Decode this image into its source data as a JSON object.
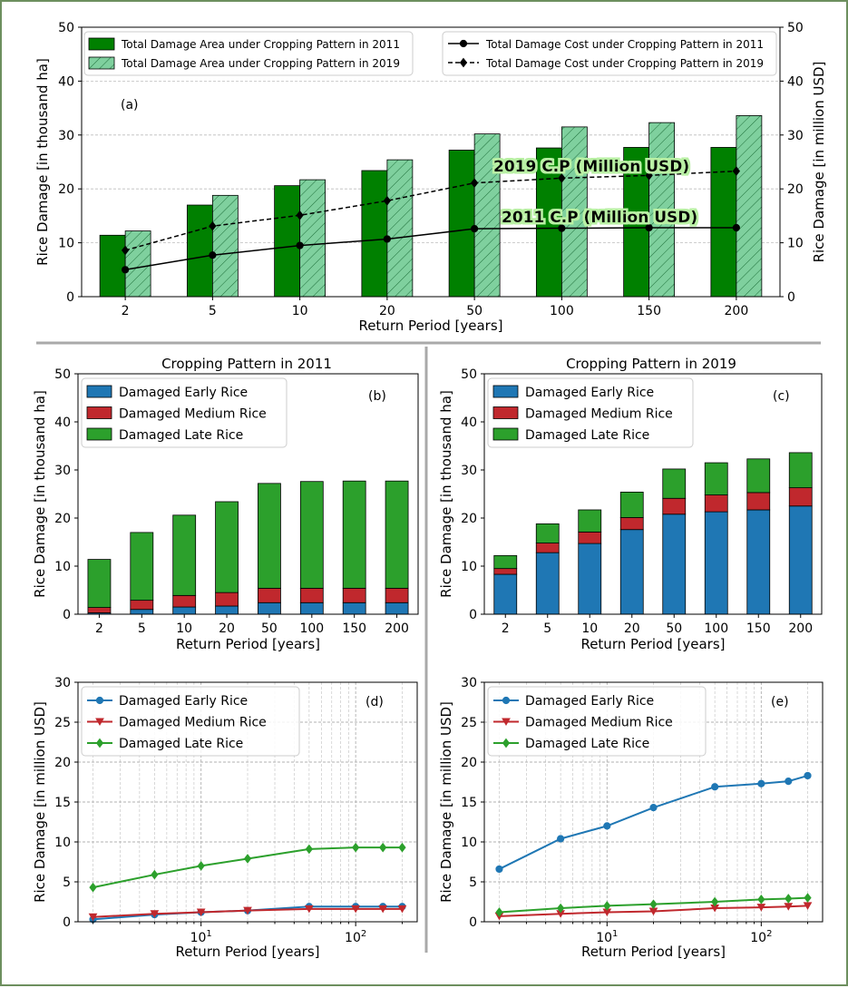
{
  "chart_data": [
    {
      "panel": "(a)",
      "type": "bar+line",
      "x_tick_labels": [
        "2",
        "5",
        "10",
        "20",
        "50",
        "100",
        "150",
        "200"
      ],
      "xlabel": "Return Period [years]",
      "ylabel_left": "Rice Damage [in thousand ha]",
      "ylabel_right": "Rice Damage [in million USD]",
      "ylim_left": [
        0,
        50
      ],
      "ylim_right": [
        0,
        50
      ],
      "y_ticks": [
        0,
        10,
        20,
        30,
        40,
        50
      ],
      "grid": "horizontal dashed",
      "legend_position": "top",
      "annotations": [
        "2019 C.P (Million USD)",
        "2011 C.P (Million USD)"
      ],
      "bar_series": [
        {
          "name": "Total Damage Area under Cropping Pattern in 2011",
          "color": "#008000",
          "hatch": false,
          "values": [
            11.4,
            17.0,
            20.6,
            23.4,
            27.2,
            27.6,
            27.7,
            27.7
          ]
        },
        {
          "name": "Total Damage Area under Cropping Pattern in 2019",
          "color": "#7fd09e",
          "hatch": true,
          "values": [
            12.2,
            18.8,
            21.7,
            25.4,
            30.2,
            31.5,
            32.3,
            33.6
          ]
        }
      ],
      "line_series": [
        {
          "name": "Total Damage Cost under Cropping Pattern in 2011",
          "style": "solid",
          "marker": "circle",
          "values": [
            5.0,
            7.7,
            9.5,
            10.7,
            12.6,
            12.7,
            12.8,
            12.8
          ]
        },
        {
          "name": "Total Damage Cost under Cropping Pattern in 2019",
          "style": "dashed",
          "marker": "diamond",
          "values": [
            8.6,
            13.1,
            15.1,
            17.8,
            21.1,
            22.0,
            22.5,
            23.3
          ]
        }
      ]
    },
    {
      "panel": "(b)",
      "type": "stacked-bar",
      "title": "Cropping Pattern in 2011",
      "categories": [
        "2",
        "5",
        "10",
        "20",
        "50",
        "100",
        "150",
        "200"
      ],
      "xlabel": "Return Period [years]",
      "ylabel": "Rice Damage [in thousand ha]",
      "ylim": [
        0,
        50
      ],
      "y_ticks": [
        0,
        10,
        20,
        30,
        40,
        50
      ],
      "legend_position": "top-left",
      "series": [
        {
          "name": "Damaged Early Rice",
          "color": "#1f77b4",
          "values": [
            0.3,
            1.0,
            1.5,
            1.7,
            2.4,
            2.4,
            2.4,
            2.4
          ]
        },
        {
          "name": "Damaged Medium Rice",
          "color": "#c0282d",
          "values": [
            1.1,
            1.9,
            2.4,
            2.8,
            3.0,
            3.0,
            3.0,
            3.0
          ]
        },
        {
          "name": "Damaged Late Rice",
          "color": "#2ca02c",
          "values": [
            10.0,
            14.1,
            16.7,
            18.9,
            21.8,
            22.2,
            22.3,
            22.3
          ]
        }
      ]
    },
    {
      "panel": "(c)",
      "type": "stacked-bar",
      "title": "Cropping Pattern in 2019",
      "categories": [
        "2",
        "5",
        "10",
        "20",
        "50",
        "100",
        "150",
        "200"
      ],
      "xlabel": "Return Period [years]",
      "ylabel": "Rice Damage [in thousand ha]",
      "ylim": [
        0,
        50
      ],
      "y_ticks": [
        0,
        10,
        20,
        30,
        40,
        50
      ],
      "legend_position": "top-left",
      "series": [
        {
          "name": "Damaged Early Rice",
          "color": "#1f77b4",
          "values": [
            8.3,
            12.8,
            14.7,
            17.6,
            20.8,
            21.3,
            21.7,
            22.5
          ]
        },
        {
          "name": "Damaged Medium Rice",
          "color": "#c0282d",
          "values": [
            1.2,
            2.0,
            2.4,
            2.5,
            3.3,
            3.5,
            3.6,
            3.8
          ]
        },
        {
          "name": "Damaged Late Rice",
          "color": "#2ca02c",
          "values": [
            2.7,
            4.0,
            4.6,
            5.3,
            6.1,
            6.7,
            7.0,
            7.3
          ]
        }
      ]
    },
    {
      "panel": "(d)",
      "type": "line",
      "xscale": "log",
      "x": [
        2,
        5,
        10,
        20,
        50,
        100,
        150,
        200
      ],
      "xlim": [
        1.6,
        250
      ],
      "x_tick_labels": [
        "10^1",
        "10^2"
      ],
      "xlabel": "Return Period [years]",
      "ylabel": "Rice Damage [in million USD]",
      "ylim": [
        0,
        30
      ],
      "y_ticks": [
        0,
        5,
        10,
        15,
        20,
        25,
        30
      ],
      "grid": "dashed both",
      "legend_position": "top-left",
      "series": [
        {
          "name": "Damaged Early Rice",
          "color": "#1f77b4",
          "marker": "circle",
          "values": [
            0.3,
            0.9,
            1.2,
            1.4,
            1.9,
            1.9,
            1.9,
            1.9
          ]
        },
        {
          "name": "Damaged Medium Rice",
          "color": "#c0282d",
          "marker": "triangle-down",
          "values": [
            0.6,
            1.0,
            1.2,
            1.4,
            1.6,
            1.6,
            1.6,
            1.6
          ]
        },
        {
          "name": "Damaged Late Rice",
          "color": "#2ca02c",
          "marker": "diamond",
          "values": [
            4.3,
            5.9,
            7.0,
            7.9,
            9.1,
            9.3,
            9.3,
            9.3
          ]
        }
      ]
    },
    {
      "panel": "(e)",
      "type": "line",
      "xscale": "log",
      "x": [
        2,
        5,
        10,
        20,
        50,
        100,
        150,
        200
      ],
      "xlim": [
        1.6,
        250
      ],
      "x_tick_labels": [
        "10^1",
        "10^2"
      ],
      "xlabel": "Return Period [years]",
      "ylabel": "Rice Damage [in million USD]",
      "ylim": [
        0,
        30
      ],
      "y_ticks": [
        0,
        5,
        10,
        15,
        20,
        25,
        30
      ],
      "grid": "dashed both",
      "legend_position": "top-left",
      "series": [
        {
          "name": "Damaged Early Rice",
          "color": "#1f77b4",
          "marker": "circle",
          "values": [
            6.6,
            10.4,
            12.0,
            14.3,
            16.9,
            17.3,
            17.6,
            18.3
          ]
        },
        {
          "name": "Damaged Medium Rice",
          "color": "#c0282d",
          "marker": "triangle-down",
          "values": [
            0.7,
            1.0,
            1.2,
            1.3,
            1.7,
            1.8,
            1.9,
            2.0
          ]
        },
        {
          "name": "Damaged Late Rice",
          "color": "#2ca02c",
          "marker": "diamond",
          "values": [
            1.2,
            1.7,
            2.0,
            2.2,
            2.5,
            2.8,
            2.9,
            3.0
          ]
        }
      ]
    }
  ]
}
